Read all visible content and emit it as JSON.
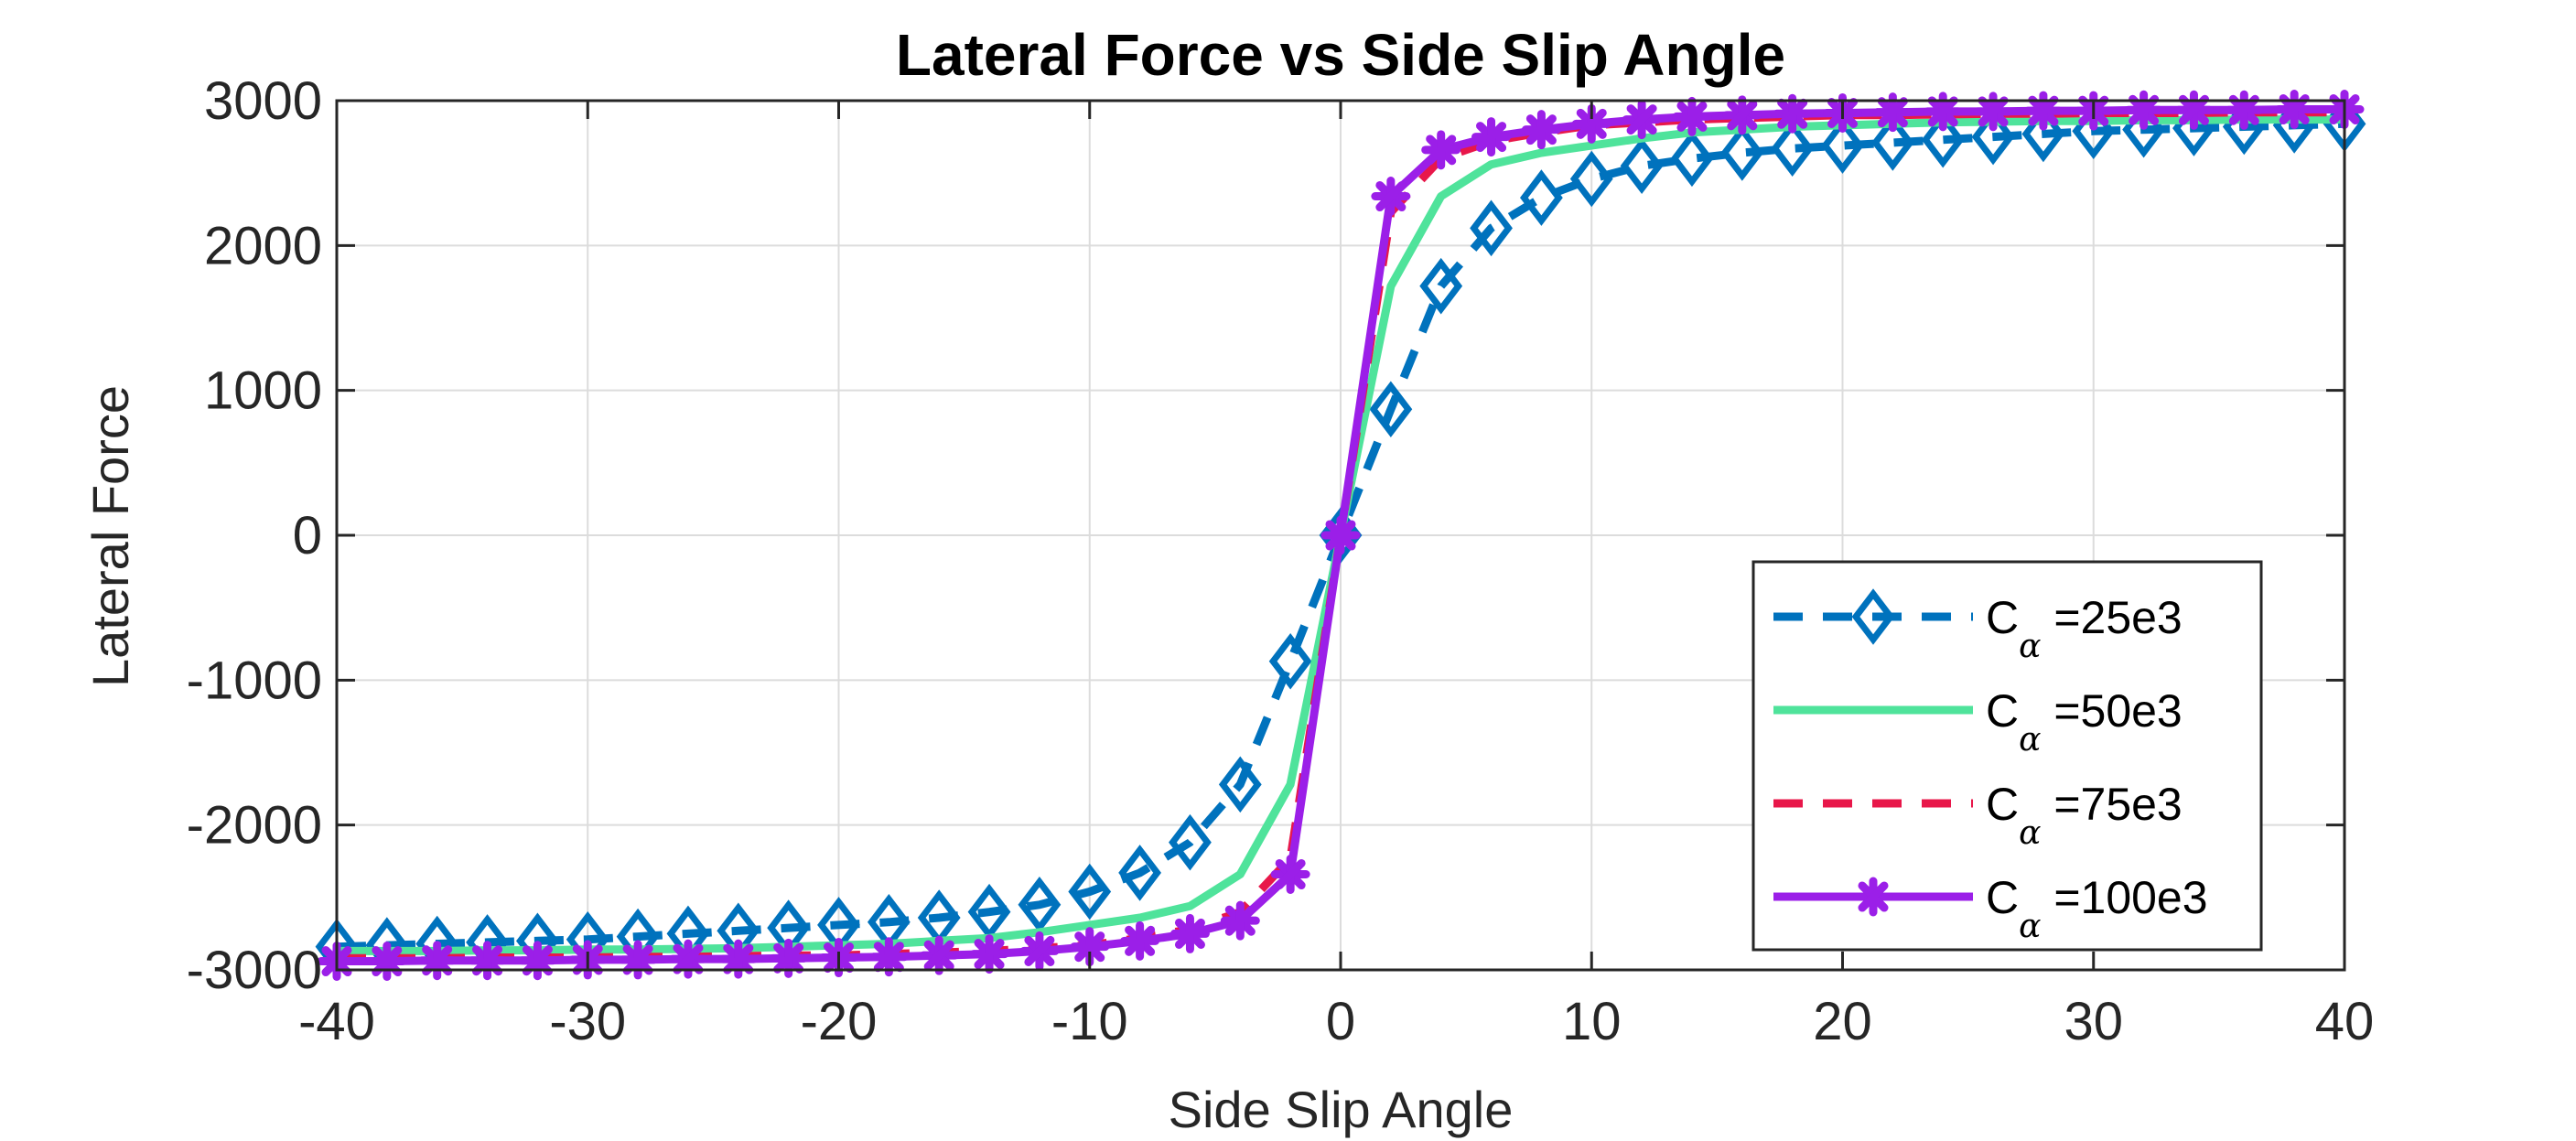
{
  "chart_data": {
    "type": "line",
    "title": "Lateral Force vs Side Slip Angle",
    "xlabel": "Side Slip Angle",
    "ylabel": "Lateral Force",
    "xlim": [
      -40,
      40
    ],
    "ylim": [
      -3000,
      3000
    ],
    "xticks": [
      -40,
      -30,
      -20,
      -10,
      0,
      10,
      20,
      30,
      40
    ],
    "yticks": [
      -3000,
      -2000,
      -1000,
      0,
      1000,
      2000,
      3000
    ],
    "xtick_labels": [
      "-40",
      "-30",
      "-20",
      "-10",
      "0",
      "10",
      "20",
      "30",
      "40"
    ],
    "ytick_labels": [
      "-3000",
      "-2000",
      "-1000",
      "0",
      "1000",
      "2000",
      "3000"
    ],
    "grid": true,
    "legend_position": "bottom-right",
    "x": [
      -40,
      -38,
      -36,
      -34,
      -32,
      -30,
      -28,
      -26,
      -24,
      -22,
      -20,
      -18,
      -16,
      -14,
      -12,
      -10,
      -8,
      -6,
      -4,
      -2,
      0,
      2,
      4,
      6,
      8,
      10,
      12,
      14,
      16,
      18,
      20,
      22,
      24,
      26,
      28,
      30,
      32,
      34,
      36,
      38,
      40
    ],
    "series": [
      {
        "legend_main": "C",
        "legend_sub": "α",
        "legend_rest": " =25e3",
        "color": "#0072BD",
        "style": "dashed",
        "marker": "diamond",
        "values": [
          -2840,
          -2830,
          -2820,
          -2810,
          -2800,
          -2790,
          -2770,
          -2750,
          -2730,
          -2710,
          -2690,
          -2670,
          -2640,
          -2600,
          -2550,
          -2460,
          -2330,
          -2120,
          -1720,
          -870,
          0,
          870,
          1720,
          2120,
          2330,
          2460,
          2550,
          2600,
          2640,
          2670,
          2690,
          2710,
          2730,
          2750,
          2770,
          2790,
          2800,
          2810,
          2820,
          2830,
          2840
        ]
      },
      {
        "legend_main": "C",
        "legend_sub": "α",
        "legend_rest": " =50e3",
        "color": "#4FE39B",
        "style": "solid",
        "marker": "none",
        "values": [
          -2870,
          -2870,
          -2870,
          -2865,
          -2865,
          -2860,
          -2860,
          -2855,
          -2850,
          -2840,
          -2830,
          -2820,
          -2800,
          -2780,
          -2740,
          -2690,
          -2640,
          -2560,
          -2340,
          -1720,
          0,
          1720,
          2340,
          2560,
          2640,
          2690,
          2740,
          2780,
          2800,
          2820,
          2830,
          2840,
          2850,
          2855,
          2860,
          2860,
          2865,
          2865,
          2870,
          2870,
          2870
        ]
      },
      {
        "legend_main": "C",
        "legend_sub": "α",
        "legend_rest": " =75e3",
        "color": "#E8174A",
        "style": "dashed",
        "marker": "none",
        "values": [
          -2920,
          -2920,
          -2920,
          -2915,
          -2915,
          -2915,
          -2910,
          -2910,
          -2905,
          -2900,
          -2900,
          -2890,
          -2880,
          -2870,
          -2850,
          -2830,
          -2780,
          -2720,
          -2600,
          -2230,
          0,
          2230,
          2600,
          2720,
          2780,
          2830,
          2850,
          2870,
          2880,
          2890,
          2900,
          2900,
          2905,
          2910,
          2910,
          2915,
          2915,
          2915,
          2920,
          2920,
          2920
        ]
      },
      {
        "legend_main": "C",
        "legend_sub": "α",
        "legend_rest": " =100e3",
        "color": "#9B1FE8",
        "style": "solid",
        "marker": "asterisk",
        "values": [
          -2940,
          -2940,
          -2935,
          -2935,
          -2935,
          -2930,
          -2930,
          -2925,
          -2925,
          -2920,
          -2915,
          -2910,
          -2900,
          -2890,
          -2870,
          -2840,
          -2800,
          -2750,
          -2660,
          -2340,
          0,
          2340,
          2660,
          2750,
          2800,
          2840,
          2870,
          2890,
          2900,
          2910,
          2915,
          2920,
          2925,
          2925,
          2930,
          2930,
          2935,
          2935,
          2935,
          2940,
          2940
        ]
      }
    ]
  }
}
